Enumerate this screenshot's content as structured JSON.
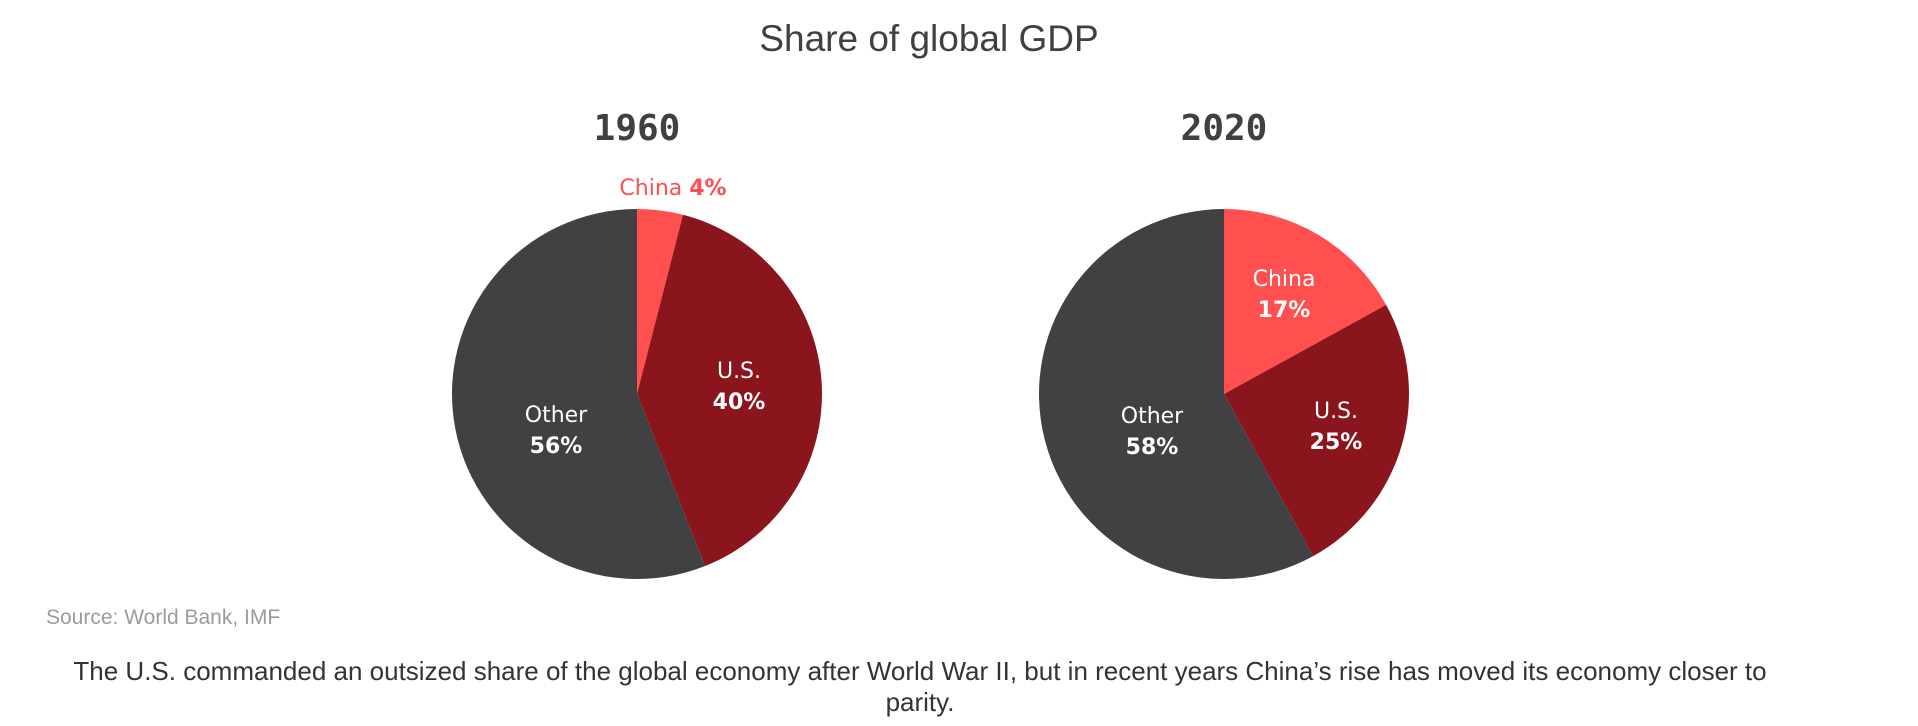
{
  "title": "Share of global GDP",
  "source": "Source: World Bank, IMF",
  "caption": "The U.S. commanded an outsized share of the global economy after World War II, but in recent years China’s rise has moved its economy closer to parity.",
  "colors": {
    "china": "#ff4f4f",
    "us": "#8b151c",
    "other": "#414042",
    "text": "#404040",
    "source": "#9b9b9b"
  },
  "charts": [
    {
      "year": "1960",
      "slices": [
        {
          "name": "China",
          "pct": "4%"
        },
        {
          "name": "U.S.",
          "pct": "40%"
        },
        {
          "name": "Other",
          "pct": "56%"
        }
      ]
    },
    {
      "year": "2020",
      "slices": [
        {
          "name": "China",
          "pct": "17%"
        },
        {
          "name": "U.S.",
          "pct": "25%"
        },
        {
          "name": "Other",
          "pct": "58%"
        }
      ]
    }
  ],
  "chart_data": [
    {
      "type": "pie",
      "title": "Share of global GDP — 1960",
      "categories": [
        "China",
        "U.S.",
        "Other"
      ],
      "values": [
        4,
        40,
        56
      ],
      "colors": [
        "#ff4f4f",
        "#8b151c",
        "#414042"
      ],
      "start_angle": "12 o'clock, clockwise",
      "units": "%",
      "source": "World Bank, IMF"
    },
    {
      "type": "pie",
      "title": "Share of global GDP — 2020",
      "categories": [
        "China",
        "U.S.",
        "Other"
      ],
      "values": [
        17,
        25,
        58
      ],
      "colors": [
        "#ff4f4f",
        "#8b151c",
        "#414042"
      ],
      "start_angle": "12 o'clock, clockwise",
      "units": "%",
      "source": "World Bank, IMF"
    }
  ]
}
